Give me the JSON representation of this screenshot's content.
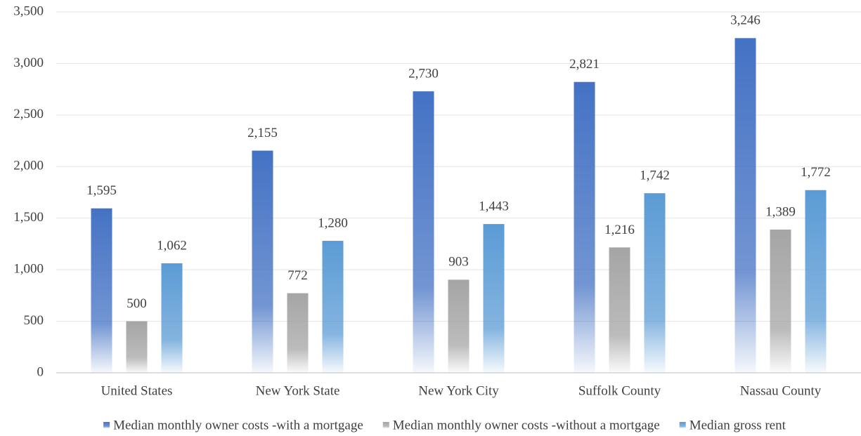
{
  "chart_data": {
    "type": "bar",
    "categories": [
      "United States",
      "New York State",
      "New York City",
      "Suffolk County",
      "Nassau County"
    ],
    "series": [
      {
        "name": "Median monthly owner costs -with a mortgage",
        "color": "#4472c4",
        "values": [
          1595,
          2155,
          2730,
          2821,
          3246
        ],
        "value_labels": [
          "1,595",
          "2,155",
          "2,730",
          "2,821",
          "3,246"
        ]
      },
      {
        "name": "Median monthly owner costs -without a mortgage",
        "color": "#a5a5a5",
        "values": [
          500,
          772,
          903,
          1216,
          1389
        ],
        "value_labels": [
          "500",
          "772",
          "903",
          "1,216",
          "1,389"
        ]
      },
      {
        "name": "Median gross rent",
        "color": "#5b9bd5",
        "values": [
          1062,
          1280,
          1443,
          1742,
          1772
        ],
        "value_labels": [
          "1,062",
          "1,280",
          "1,443",
          "1,742",
          "1,772"
        ]
      }
    ],
    "ylim": [
      0,
      3500
    ],
    "yticks": [
      0,
      500,
      {
        "value": 1000,
        "label": "1,000"
      },
      {
        "value": 1500,
        "label": "1,500"
      },
      {
        "value": 2000,
        "label": "2,000"
      },
      {
        "value": 2500,
        "label": "2,500"
      },
      {
        "value": 3000,
        "label": "3,000"
      },
      {
        "value": 3500,
        "label": "3,500"
      }
    ],
    "grid": true,
    "legend": "bottom"
  }
}
